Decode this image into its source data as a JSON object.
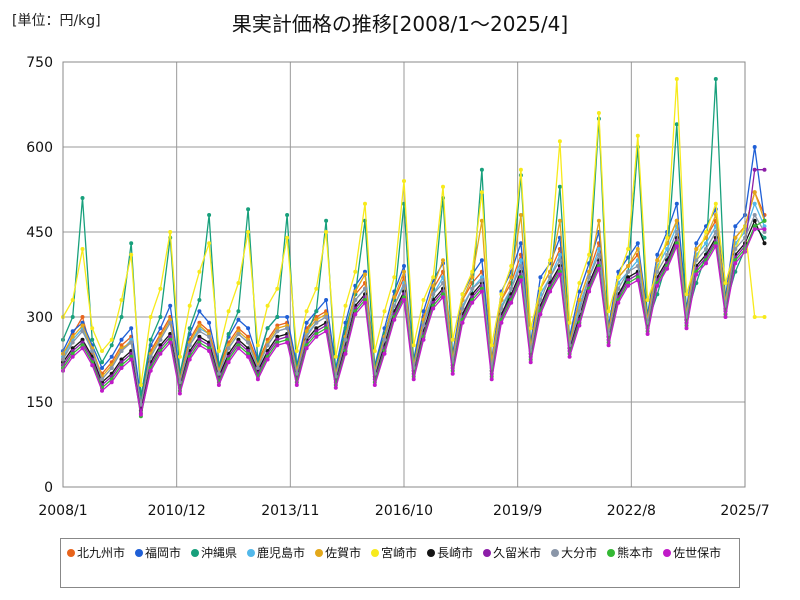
{
  "header": {
    "unit_label": "[単位：円/kg]"
  },
  "chart_data": {
    "type": "line",
    "title": "果実計価格の推移[2008/1～2025/4]",
    "xlabel": "",
    "ylabel": "",
    "ylim": [
      0,
      750
    ],
    "yticks": [
      0,
      150,
      300,
      450,
      600,
      750
    ],
    "xlim": [
      "2008/1",
      "2025/7"
    ],
    "xticks": [
      "2008/1",
      "2010/12",
      "2013/11",
      "2016/10",
      "2019/9",
      "2022/8",
      "2025/7"
    ],
    "grid": true,
    "legend_position": "bottom",
    "sampling": "every 3 months (Jan, Apr, Jul, Oct), values estimated from the plot",
    "series": [
      {
        "name": "北九州市",
        "color": "#e8641c",
        "values": [
          225,
          270,
          300,
          235,
          200,
          220,
          250,
          265,
          150,
          240,
          270,
          300,
          190,
          260,
          290,
          275,
          210,
          255,
          280,
          265,
          220,
          260,
          285,
          290,
          210,
          280,
          300,
          310,
          200,
          270,
          340,
          360,
          210,
          270,
          330,
          370,
          220,
          300,
          350,
          380,
          230,
          330,
          360,
          380,
          220,
          330,
          360,
          410,
          250,
          350,
          380,
          420,
          260,
          330,
          380,
          430,
          280,
          370,
          390,
          410,
          300,
          400,
          430,
          470,
          310,
          420,
          440,
          470,
          330,
          440,
          460,
          520,
          480
        ]
      },
      {
        "name": "福岡市",
        "color": "#1f5fd6",
        "values": [
          240,
          275,
          290,
          250,
          210,
          230,
          260,
          280,
          155,
          250,
          280,
          320,
          200,
          270,
          310,
          290,
          215,
          265,
          295,
          280,
          225,
          280,
          300,
          300,
          215,
          290,
          310,
          330,
          210,
          290,
          355,
          380,
          215,
          280,
          345,
          390,
          225,
          310,
          365,
          395,
          235,
          340,
          375,
          400,
          225,
          345,
          380,
          430,
          255,
          370,
          395,
          440,
          265,
          345,
          395,
          450,
          285,
          380,
          405,
          430,
          305,
          410,
          450,
          500,
          315,
          430,
          460,
          490,
          335,
          460,
          480,
          600,
          470
        ]
      },
      {
        "name": "沖縄県",
        "color": "#18a07c",
        "values": [
          260,
          300,
          510,
          260,
          220,
          250,
          300,
          430,
          160,
          260,
          300,
          440,
          200,
          280,
          330,
          480,
          210,
          270,
          310,
          490,
          220,
          280,
          300,
          480,
          210,
          270,
          310,
          470,
          200,
          280,
          340,
          470,
          210,
          270,
          330,
          500,
          220,
          290,
          330,
          510,
          230,
          300,
          340,
          560,
          220,
          300,
          350,
          550,
          250,
          310,
          360,
          530,
          260,
          320,
          370,
          650,
          270,
          330,
          380,
          600,
          290,
          340,
          400,
          640,
          300,
          360,
          410,
          720,
          320,
          380,
          420,
          460,
          440
        ]
      },
      {
        "name": "鹿児島市",
        "color": "#52b8ea",
        "values": [
          230,
          260,
          280,
          240,
          190,
          210,
          240,
          260,
          140,
          230,
          260,
          290,
          185,
          250,
          280,
          270,
          200,
          245,
          270,
          255,
          210,
          250,
          275,
          280,
          200,
          270,
          290,
          300,
          195,
          260,
          330,
          350,
          200,
          260,
          320,
          360,
          210,
          290,
          340,
          370,
          220,
          320,
          350,
          370,
          210,
          320,
          350,
          400,
          240,
          340,
          370,
          410,
          250,
          320,
          370,
          420,
          270,
          360,
          380,
          400,
          290,
          390,
          420,
          460,
          300,
          410,
          430,
          460,
          320,
          430,
          450,
          500,
          460
        ]
      },
      {
        "name": "佐賀市",
        "color": "#e3a81a",
        "values": [
          235,
          265,
          285,
          245,
          195,
          215,
          245,
          255,
          145,
          235,
          265,
          295,
          190,
          255,
          285,
          270,
          205,
          250,
          275,
          260,
          215,
          255,
          280,
          285,
          205,
          275,
          295,
          305,
          200,
          265,
          345,
          375,
          205,
          265,
          335,
          380,
          215,
          295,
          355,
          400,
          225,
          330,
          370,
          470,
          220,
          330,
          370,
          480,
          245,
          350,
          380,
          470,
          255,
          330,
          380,
          470,
          275,
          370,
          390,
          420,
          295,
          400,
          430,
          470,
          305,
          420,
          440,
          480,
          325,
          440,
          460,
          520,
          470
        ]
      },
      {
        "name": "宮崎市",
        "color": "#f7ea1c",
        "values": [
          300,
          330,
          420,
          280,
          240,
          260,
          330,
          410,
          180,
          300,
          350,
          450,
          230,
          320,
          380,
          430,
          240,
          310,
          360,
          450,
          250,
          320,
          350,
          440,
          240,
          310,
          350,
          450,
          230,
          320,
          380,
          500,
          240,
          310,
          370,
          540,
          250,
          330,
          370,
          530,
          260,
          340,
          380,
          520,
          250,
          340,
          390,
          560,
          280,
          350,
          400,
          610,
          290,
          360,
          410,
          660,
          310,
          370,
          420,
          620,
          330,
          380,
          440,
          720,
          340,
          400,
          450,
          500,
          360,
          420,
          460,
          300,
          300
        ]
      },
      {
        "name": "長崎市",
        "color": "#141414",
        "values": [
          220,
          245,
          260,
          230,
          185,
          200,
          225,
          240,
          135,
          220,
          250,
          270,
          180,
          240,
          265,
          255,
          195,
          235,
          260,
          245,
          205,
          240,
          265,
          270,
          195,
          260,
          280,
          290,
          190,
          250,
          320,
          340,
          195,
          250,
          310,
          345,
          205,
          275,
          330,
          350,
          215,
          305,
          340,
          360,
          205,
          305,
          340,
          380,
          235,
          320,
          360,
          390,
          245,
          300,
          360,
          400,
          265,
          340,
          370,
          380,
          285,
          370,
          400,
          440,
          295,
          390,
          410,
          440,
          315,
          410,
          430,
          470,
          430
        ]
      },
      {
        "name": "久留米市",
        "color": "#8c1ea8",
        "values": [
          215,
          240,
          255,
          225,
          180,
          195,
          220,
          235,
          130,
          215,
          245,
          265,
          175,
          235,
          260,
          250,
          190,
          230,
          255,
          240,
          200,
          235,
          260,
          265,
          190,
          255,
          275,
          285,
          185,
          245,
          315,
          335,
          190,
          245,
          305,
          340,
          200,
          270,
          325,
          345,
          210,
          300,
          335,
          355,
          200,
          300,
          335,
          375,
          230,
          315,
          355,
          385,
          240,
          295,
          355,
          395,
          260,
          335,
          365,
          375,
          280,
          365,
          395,
          435,
          290,
          385,
          405,
          435,
          310,
          405,
          425,
          560,
          560
        ]
      },
      {
        "name": "大分市",
        "color": "#8a96a8",
        "values": [
          225,
          255,
          275,
          240,
          190,
          210,
          240,
          255,
          145,
          230,
          260,
          290,
          185,
          250,
          275,
          265,
          200,
          245,
          270,
          255,
          210,
          250,
          275,
          280,
          200,
          265,
          290,
          300,
          195,
          260,
          330,
          350,
          200,
          260,
          320,
          355,
          210,
          285,
          340,
          360,
          220,
          315,
          350,
          365,
          210,
          315,
          350,
          390,
          240,
          330,
          370,
          400,
          250,
          310,
          370,
          410,
          270,
          350,
          380,
          390,
          290,
          380,
          410,
          450,
          300,
          400,
          420,
          450,
          320,
          420,
          440,
          480,
          450
        ]
      },
      {
        "name": "熊本市",
        "color": "#34b834",
        "values": [
          210,
          235,
          250,
          220,
          175,
          190,
          215,
          230,
          125,
          210,
          240,
          260,
          170,
          230,
          255,
          245,
          185,
          225,
          250,
          235,
          195,
          230,
          255,
          260,
          185,
          250,
          270,
          280,
          180,
          240,
          310,
          330,
          185,
          240,
          300,
          335,
          195,
          265,
          320,
          340,
          205,
          295,
          330,
          350,
          195,
          295,
          330,
          370,
          225,
          310,
          350,
          380,
          235,
          290,
          350,
          390,
          255,
          330,
          360,
          370,
          275,
          360,
          390,
          430,
          285,
          380,
          400,
          430,
          305,
          400,
          420,
          460,
          470
        ]
      },
      {
        "name": "佐世保市",
        "color": "#c01ac8",
        "values": [
          205,
          230,
          245,
          215,
          170,
          185,
          210,
          225,
          128,
          205,
          235,
          255,
          165,
          225,
          250,
          240,
          180,
          220,
          245,
          230,
          190,
          225,
          250,
          255,
          180,
          245,
          265,
          275,
          175,
          235,
          305,
          325,
          180,
          235,
          295,
          330,
          190,
          260,
          315,
          335,
          200,
          290,
          325,
          345,
          190,
          290,
          325,
          365,
          220,
          305,
          345,
          375,
          230,
          285,
          345,
          385,
          250,
          325,
          355,
          365,
          270,
          355,
          385,
          425,
          280,
          375,
          395,
          425,
          300,
          395,
          415,
          455,
          455
        ]
      }
    ]
  }
}
